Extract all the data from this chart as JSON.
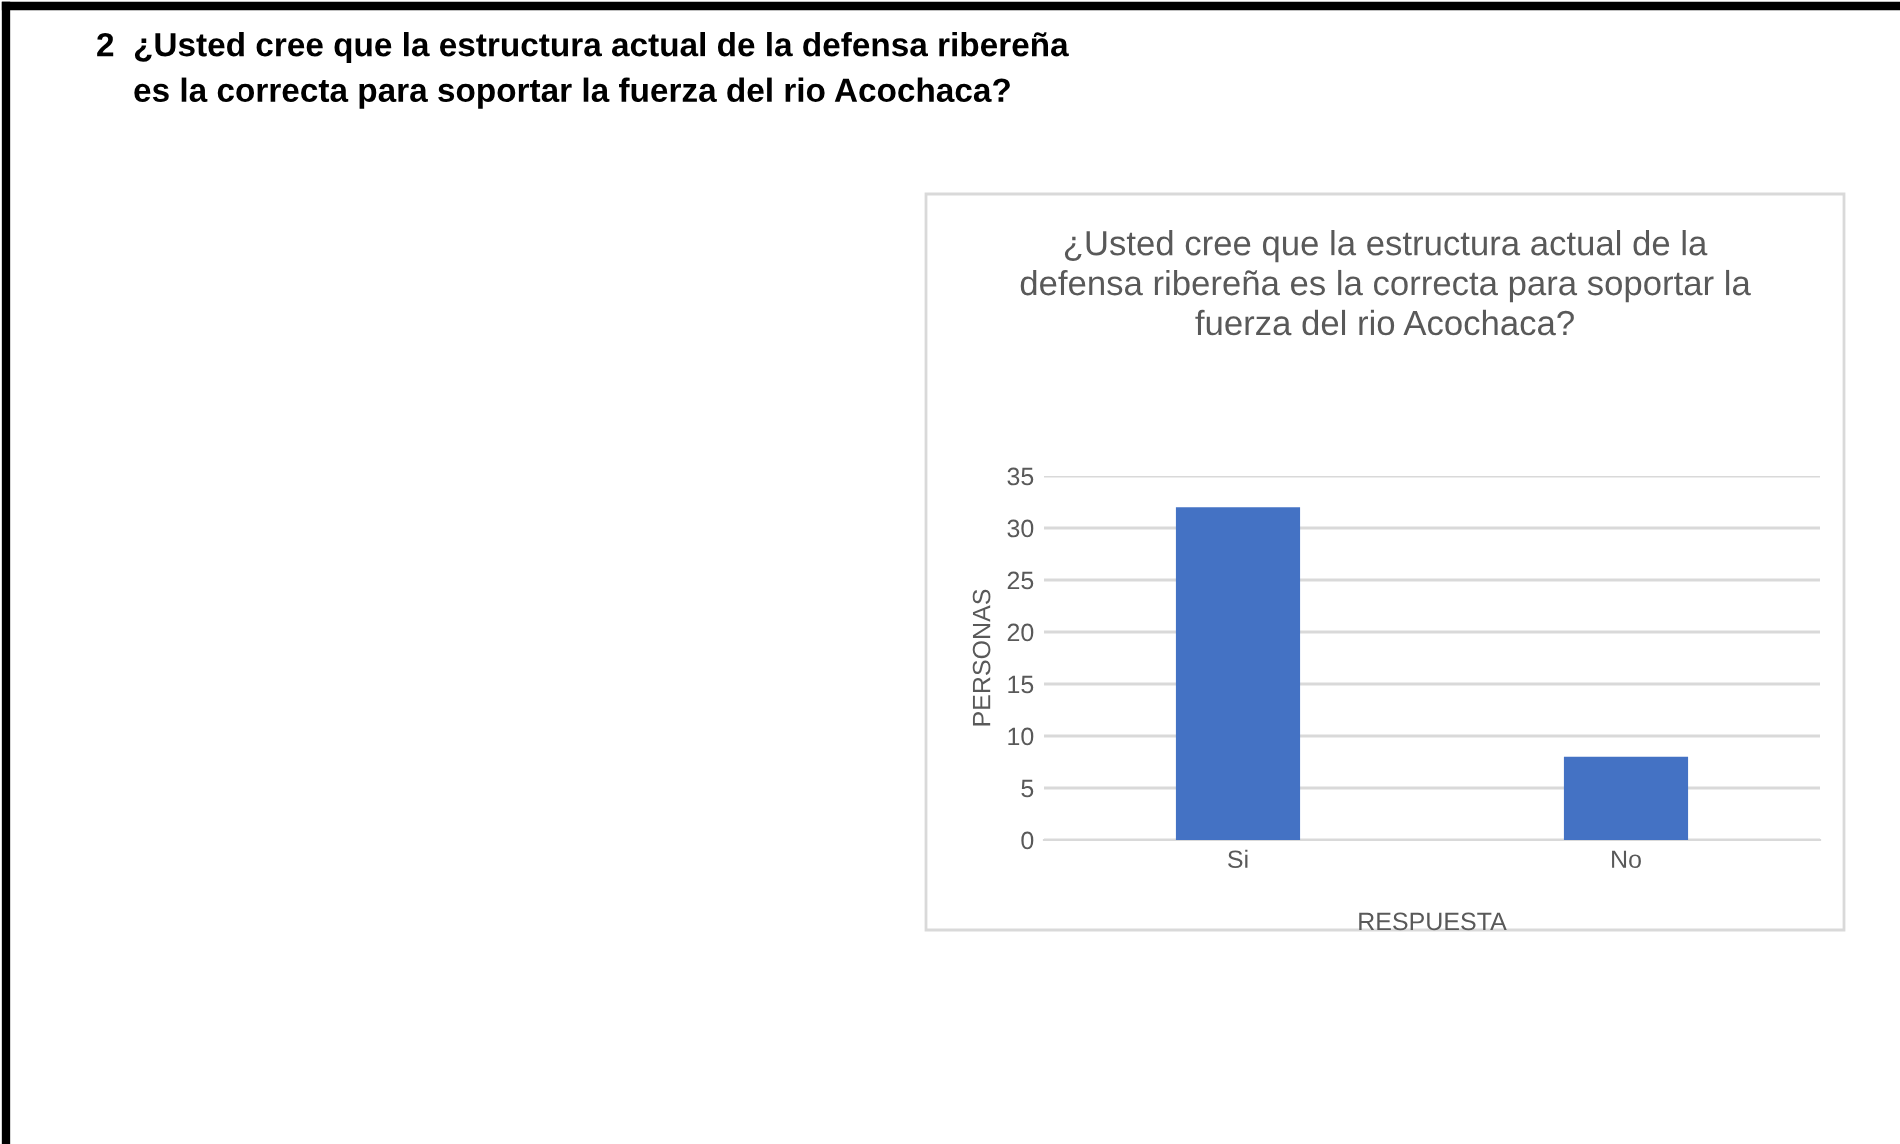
{
  "chart_data": {
    "type": "bar",
    "title": "¿Usted cree que la estructura actual de la\ndefensa ribereña es la correcta para soportar la\nfuerza del rio Acochaca?",
    "annotations": [
      "2  ¿Usted cree que la estructura actual de la defensa ribereña\n    es la correcta para soportar la fuerza del rio Acochaca?"
    ],
    "xlabel": "RESPUESTA",
    "ylabel": "PERSONAS",
    "categories": [
      "Si",
      "No"
    ],
    "values": [
      32,
      8
    ],
    "color": "#4472c4",
    "ylim": [
      0,
      35
    ],
    "yticks": [
      0,
      5,
      10,
      15,
      20,
      25,
      30,
      35
    ],
    "grid": "y"
  }
}
